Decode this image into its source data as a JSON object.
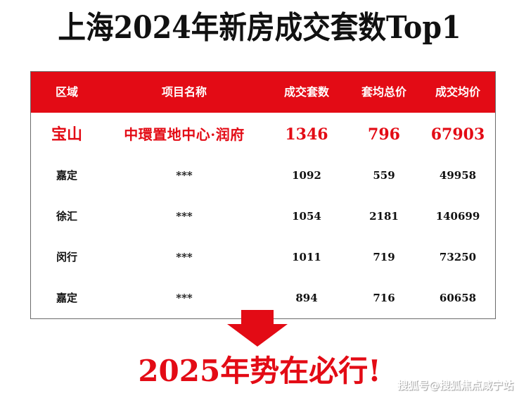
{
  "title": "上海2024年新房成交套数Top1",
  "table": {
    "headers": [
      "区域",
      "项目名称",
      "成交套数",
      "套均总价",
      "成交均价"
    ],
    "rows": [
      {
        "area": "宝山",
        "project": "中環置地中心·润府",
        "units": "1346",
        "avg_total": "796",
        "avg_price": "67903"
      },
      {
        "area": "嘉定",
        "project": "***",
        "units": "1092",
        "avg_total": "559",
        "avg_price": "49958"
      },
      {
        "area": "徐汇",
        "project": "***",
        "units": "1054",
        "avg_total": "2181",
        "avg_price": "140699"
      },
      {
        "area": "闵行",
        "project": "***",
        "units": "1011",
        "avg_total": "719",
        "avg_price": "73250"
      },
      {
        "area": "嘉定",
        "project": "***",
        "units": "894",
        "avg_total": "716",
        "avg_price": "60658"
      }
    ]
  },
  "slogan": "2025年势在必行!",
  "watermark": "搜狐号@搜狐焦点咸宁站",
  "icons": {
    "arrow": "down-arrow-icon"
  },
  "colors": {
    "accent_red": "#e30b15",
    "text_dark": "#111111",
    "header_text": "#ffffff"
  }
}
